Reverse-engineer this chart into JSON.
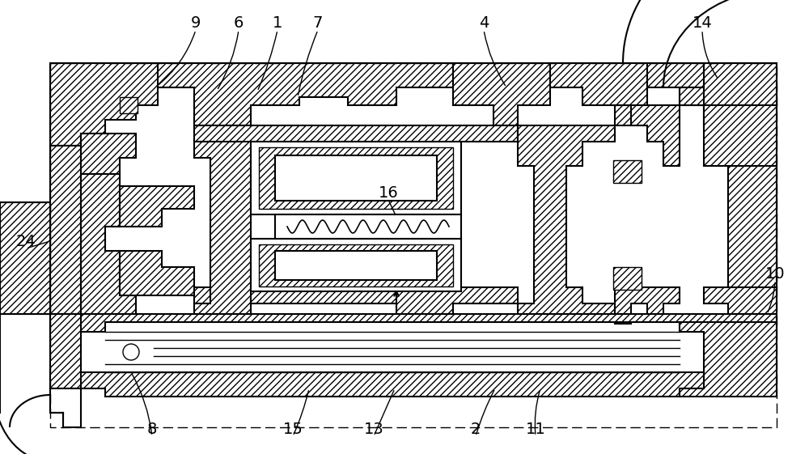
{
  "bg": "#ffffff",
  "lc": "#000000",
  "fig_width": 10.0,
  "fig_height": 5.61,
  "dpi": 100,
  "labels_config": [
    [
      "9",
      242,
      28,
      192,
      108,
      -0.15
    ],
    [
      "6",
      295,
      28,
      268,
      112,
      -0.1
    ],
    [
      "1",
      343,
      28,
      318,
      113,
      -0.05
    ],
    [
      "7",
      393,
      28,
      368,
      120,
      0.05
    ],
    [
      "4",
      598,
      28,
      626,
      108,
      0.1
    ],
    [
      "14",
      868,
      28,
      888,
      98,
      0.15
    ],
    [
      "24",
      32,
      298,
      62,
      298,
      0.0
    ],
    [
      "16",
      480,
      238,
      490,
      268,
      0.0
    ],
    [
      "10",
      958,
      338,
      948,
      388,
      -0.1
    ],
    [
      "8",
      188,
      530,
      162,
      460,
      0.1
    ],
    [
      "15",
      362,
      530,
      382,
      480,
      0.05
    ],
    [
      "13",
      462,
      530,
      488,
      480,
      0.0
    ],
    [
      "2",
      588,
      530,
      612,
      480,
      -0.05
    ],
    [
      "11",
      662,
      530,
      668,
      480,
      -0.1
    ]
  ]
}
